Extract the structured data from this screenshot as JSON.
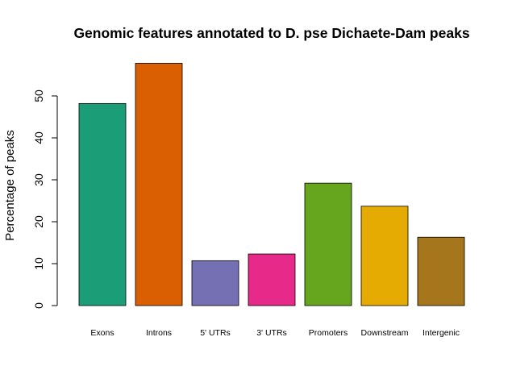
{
  "chart_data": {
    "type": "bar",
    "title": "Genomic features annotated to D. pse Dichaete-Dam peaks",
    "xlabel": "",
    "ylabel": "Percentage of peaks",
    "categories": [
      "Exons",
      "Introns",
      "5' UTRs",
      "3' UTRs",
      "Promoters",
      "Downstream",
      "Intergenic"
    ],
    "values": [
      48.2,
      57.8,
      10.7,
      12.3,
      29.2,
      23.7,
      16.3
    ],
    "colors": [
      "#1B9E77",
      "#D95F02",
      "#7570B3",
      "#E7298A",
      "#66A61E",
      "#E6AB02",
      "#A6761D"
    ],
    "yticks": [
      0,
      10,
      20,
      30,
      40,
      50
    ],
    "ylim": [
      0,
      60
    ],
    "grid": false,
    "legend": "none"
  }
}
